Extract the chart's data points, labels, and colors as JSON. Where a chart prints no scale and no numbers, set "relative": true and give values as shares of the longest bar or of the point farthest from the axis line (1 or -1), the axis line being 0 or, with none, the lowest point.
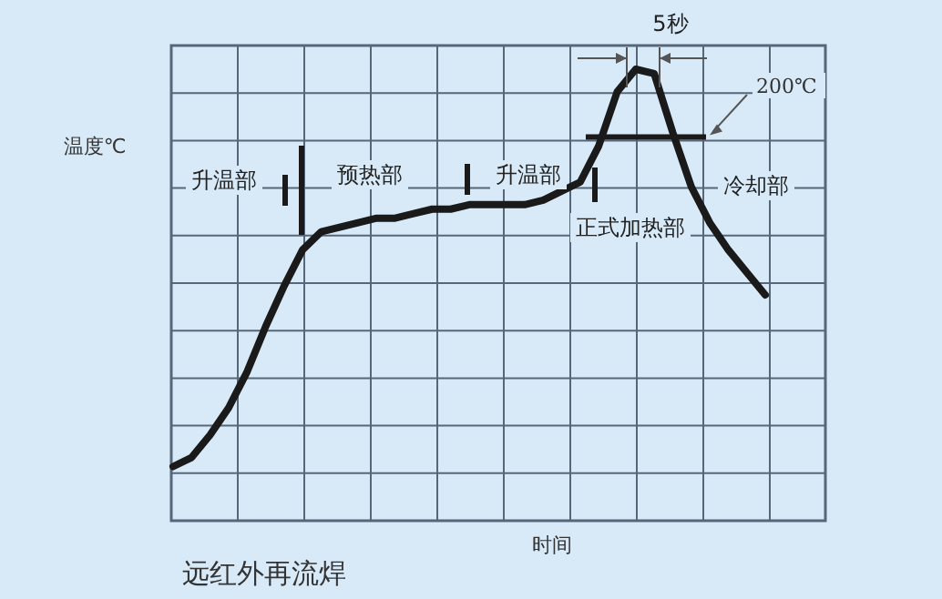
{
  "chart_data": {
    "type": "line",
    "title": "远红外再流焊",
    "xlabel": "时间",
    "ylabel": "温度℃",
    "relative": true,
    "grid": true,
    "categories": [
      null,
      null,
      null,
      null,
      null,
      null,
      null,
      null,
      null,
      null,
      null,
      null,
      null,
      null,
      null,
      null,
      null,
      null,
      null,
      null,
      null,
      null,
      null,
      null,
      null,
      null,
      null,
      null,
      null,
      null,
      null,
      null,
      null
    ],
    "series": [
      {
        "color": "#1a1a1a",
        "values": [
          0.12,
          0.14,
          0.19,
          0.25,
          0.33,
          0.43,
          0.52,
          0.6,
          0.64,
          0.65,
          0.66,
          0.67,
          0.67,
          0.68,
          0.69,
          0.69,
          0.7,
          0.7,
          0.7,
          0.7,
          0.71,
          0.73,
          0.75,
          0.83,
          0.95,
          1,
          0.99,
          0.86,
          0.74,
          0.66,
          0.6,
          0.55,
          0.5
        ]
      }
    ],
    "ref_lines": [
      {
        "axis": "y",
        "value": 0.85,
        "label": "200℃",
        "color": "#1a1a1a"
      }
    ],
    "annotations": [
      "升温部",
      "预热部",
      "升温部",
      "正式加热部",
      "冷却部",
      "5秒"
    ]
  }
}
